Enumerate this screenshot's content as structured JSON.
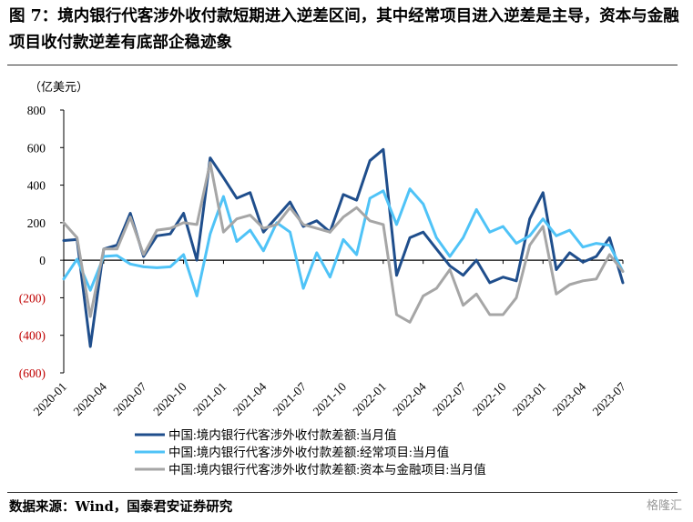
{
  "title": "图 7：境内银行代客涉外收付款短期进入逆差区间，其中经常项目进入逆差是主导，资本与金融项目收付款逆差有底部企稳迹象",
  "source": "数据来源：Wind，国泰君安证券研究",
  "watermark": "格隆汇",
  "chart_data": {
    "type": "line",
    "unit": "（亿美元）",
    "ylim": [
      -600,
      800
    ],
    "yticks": [
      800,
      600,
      400,
      200,
      0,
      -200,
      -400,
      -600
    ],
    "yticklabels": [
      "800",
      "600",
      "400",
      "200",
      "0",
      "(200)",
      "(400)",
      "(600)"
    ],
    "xticklabels": [
      "2020-01",
      "2020-04",
      "2020-07",
      "2020-10",
      "2021-01",
      "2021-04",
      "2021-07",
      "2021-10",
      "2022-01",
      "2022-04",
      "2022-07",
      "2022-10",
      "2023-01",
      "2023-04",
      "2023-07"
    ],
    "x": [
      "2020-01",
      "2020-02",
      "2020-03",
      "2020-04",
      "2020-05",
      "2020-06",
      "2020-07",
      "2020-08",
      "2020-09",
      "2020-10",
      "2020-11",
      "2020-12",
      "2021-01",
      "2021-02",
      "2021-03",
      "2021-04",
      "2021-05",
      "2021-06",
      "2021-07",
      "2021-08",
      "2021-09",
      "2021-10",
      "2021-11",
      "2021-12",
      "2022-01",
      "2022-02",
      "2022-03",
      "2022-04",
      "2022-05",
      "2022-06",
      "2022-07",
      "2022-08",
      "2022-09",
      "2022-10",
      "2022-11",
      "2022-12",
      "2023-01",
      "2023-02",
      "2023-03",
      "2023-04",
      "2023-05",
      "2023-06",
      "2023-07"
    ],
    "series": [
      {
        "name": "中国:境内银行代客涉外收付款差额:当月值",
        "color": "#1f4e8c",
        "values": [
          105,
          110,
          -460,
          60,
          80,
          250,
          20,
          130,
          140,
          250,
          0,
          545,
          440,
          330,
          360,
          150,
          230,
          310,
          180,
          210,
          150,
          350,
          320,
          530,
          590,
          -80,
          120,
          150,
          60,
          -30,
          -80,
          0,
          -120,
          -90,
          -110,
          220,
          360,
          -50,
          40,
          -10,
          20,
          120,
          -120
        ]
      },
      {
        "name": "中国:境内银行代客涉外收付款差额:经常项目:当月值",
        "color": "#4fc3f7",
        "values": [
          -100,
          5,
          -160,
          20,
          25,
          -20,
          -35,
          -40,
          -35,
          30,
          -190,
          140,
          340,
          100,
          160,
          50,
          200,
          150,
          -150,
          40,
          -90,
          110,
          30,
          330,
          370,
          190,
          380,
          300,
          120,
          20,
          120,
          270,
          150,
          180,
          90,
          130,
          220,
          130,
          160,
          70,
          90,
          80,
          -60
        ]
      },
      {
        "name": "中国:境内银行代客涉外收付款差额:资本与金融项目:当月值",
        "color": "#a6a6a6",
        "values": [
          200,
          120,
          -300,
          60,
          60,
          230,
          30,
          160,
          170,
          200,
          190,
          520,
          150,
          220,
          240,
          170,
          190,
          280,
          190,
          170,
          150,
          230,
          280,
          210,
          190,
          -290,
          -330,
          -190,
          -150,
          -50,
          -240,
          -180,
          -290,
          -290,
          -200,
          80,
          180,
          -180,
          -130,
          -110,
          -100,
          30,
          -60
        ]
      }
    ]
  }
}
